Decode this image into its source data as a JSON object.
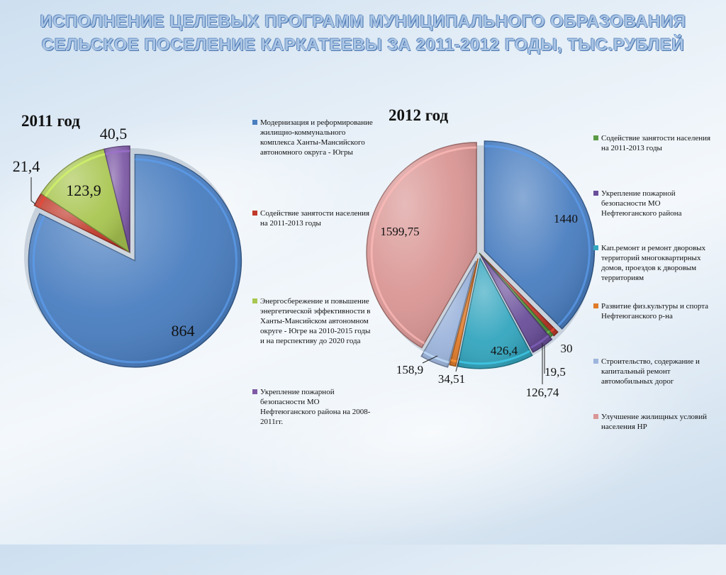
{
  "title": "ИСПОЛНЕНИЕ ЦЕЛЕВЫХ ПРОГРАММ МУНИЦИПАЛЬНОГО ОБРАЗОВАНИЯ СЕЛЬСКОЕ ПОСЕЛЕНИЕ КАРКАТЕЕВЫ ЗА 2011-2012 ГОДЫ, ТЫС.РУБЛЕЙ",
  "chart_data": [
    {
      "type": "pie",
      "title": "2011 год",
      "legend_placement": "right",
      "slices": [
        {
          "label": "Модернизация и реформирование жилищно-коммунального комплекса Ханты-Мансийского автономного округа - Югры",
          "value": 864,
          "value_label": "864",
          "color": "#4a7ec0"
        },
        {
          "label": "Содействие занятости населения на 2011-2013 годы",
          "value": 21.4,
          "value_label": "21,4",
          "color": "#c0392b"
        },
        {
          "label": "Энергосбережение и повышение энергетической эффективности в Ханты-Мансийском автономном округе - Югре на 2010-2015 годы и на перспективу до 2020 года",
          "value": 123.9,
          "value_label": "123,9",
          "color": "#a9c651"
        },
        {
          "label": "Укрепление пожарной безопасности МО Нефтеюганского района на 2008-2011гг.",
          "value": 40.5,
          "value_label": "40,5",
          "color": "#7e5aa6"
        }
      ]
    },
    {
      "type": "pie",
      "title": "2012 год",
      "legend_placement": "right",
      "slices": [
        {
          "label": "Содействие занятости населения на 2011-2013 годы",
          "value": 19.5,
          "value_label": "19,5",
          "color": "#5b9a45"
        },
        {
          "label": "Укрепление пожарной безопасности МО Нефтеюганского района",
          "value": 126.74,
          "value_label": "126,74",
          "color": "#6a4f9a"
        },
        {
          "label": "Кап.ремонт и ремонт дворовых территорий многоквартирных домов, проездов к дворовым территориям",
          "value": 426.4,
          "value_label": "426,4",
          "color": "#34a6bf"
        },
        {
          "label": "Развитие физ.культуры и спорта Нефтеюганского р-на",
          "value": 34.51,
          "value_label": "34,51",
          "color": "#e07b2a"
        },
        {
          "label": "Строительство, содержание и капитальный ремонт автомобильных дорог",
          "value": 158.9,
          "value_label": "158,9",
          "color": "#9db5dc"
        },
        {
          "label": "Улучшение жилищных условий населения НР",
          "value": 1599.75,
          "value_label": "1599,75",
          "color": "#d99694"
        },
        {
          "label": "",
          "value": 1440,
          "value_label": "1440",
          "color": "#4a7ec0"
        },
        {
          "label": "",
          "value": 30,
          "value_label": "30",
          "color": "#c0392b"
        }
      ]
    }
  ]
}
